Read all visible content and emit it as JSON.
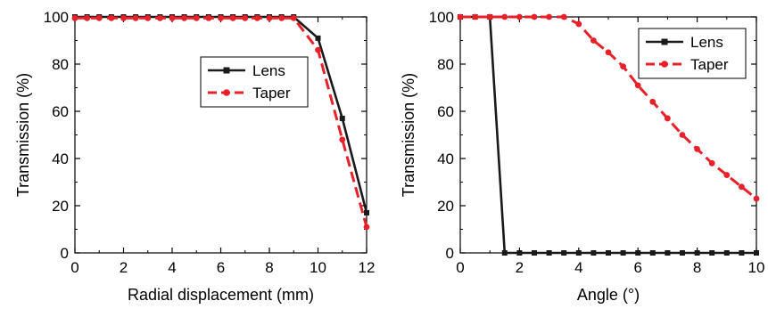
{
  "chart_data": [
    {
      "type": "line",
      "title": "",
      "xlabel": "Radial displacement (mm)",
      "ylabel": "Transmission (%)",
      "xlim": [
        0,
        12
      ],
      "ylim": [
        0,
        100
      ],
      "xticks": [
        0,
        2,
        4,
        6,
        8,
        10,
        12
      ],
      "yticks": [
        0,
        20,
        40,
        60,
        80,
        100
      ],
      "grid": false,
      "legend": "center-right",
      "series": [
        {
          "name": "Lens",
          "color": "#1a1a1a",
          "line_style": "solid",
          "marker": "square",
          "x": [
            0,
            0.5,
            1,
            1.5,
            2,
            2.5,
            3,
            3.5,
            4,
            4.5,
            5,
            5.5,
            6,
            6.5,
            7,
            7.5,
            8,
            8.5,
            9,
            10,
            11,
            12
          ],
          "y": [
            100,
            100,
            100,
            100,
            100,
            100,
            100,
            100,
            100,
            100,
            100,
            100,
            100,
            100,
            100,
            100,
            100,
            100,
            100,
            91,
            57,
            17
          ]
        },
        {
          "name": "Taper",
          "color": "#e8202a",
          "line_style": "dashed",
          "marker": "circle",
          "x": [
            0,
            0.5,
            1,
            1.5,
            2,
            2.5,
            3,
            3.5,
            4,
            4.5,
            5,
            5.5,
            6,
            6.5,
            7,
            7.5,
            8,
            8.5,
            9,
            10,
            11,
            12
          ],
          "y": [
            99.5,
            99.5,
            99.5,
            99.5,
            99.5,
            99.5,
            99.5,
            99.5,
            99.5,
            99.5,
            99.5,
            99.5,
            99.5,
            99.5,
            99.5,
            99.5,
            99.5,
            99.5,
            99.5,
            86,
            48,
            11
          ]
        }
      ]
    },
    {
      "type": "line",
      "title": "",
      "xlabel": "Angle (°)",
      "ylabel": "Transmission (%)",
      "xlim": [
        0,
        10
      ],
      "ylim": [
        0,
        100
      ],
      "xticks": [
        0,
        2,
        4,
        6,
        8,
        10
      ],
      "yticks": [
        0,
        20,
        40,
        60,
        80,
        100
      ],
      "grid": false,
      "legend": "top-right",
      "series": [
        {
          "name": "Lens",
          "color": "#1a1a1a",
          "line_style": "solid",
          "marker": "square",
          "x": [
            0,
            0.5,
            1,
            1.5,
            2,
            2.5,
            3,
            3.5,
            4,
            4.5,
            5,
            5.5,
            6,
            6.5,
            7,
            7.5,
            8,
            8.5,
            9,
            9.5,
            10
          ],
          "y": [
            100,
            100,
            100,
            0,
            0,
            0,
            0,
            0,
            0,
            0,
            0,
            0,
            0,
            0,
            0,
            0,
            0,
            0,
            0,
            0,
            0
          ]
        },
        {
          "name": "Taper",
          "color": "#e8202a",
          "line_style": "dashed",
          "marker": "circle",
          "x": [
            0,
            0.5,
            1,
            1.5,
            2,
            2.5,
            3,
            3.5,
            4,
            4.5,
            5,
            5.5,
            6,
            6.5,
            7,
            7.5,
            8,
            8.5,
            9,
            9.5,
            10
          ],
          "y": [
            100,
            100,
            100,
            100,
            100,
            100,
            100,
            100,
            97,
            90,
            85,
            79,
            71,
            64,
            57,
            50,
            44,
            38,
            33,
            28,
            23
          ]
        }
      ]
    }
  ]
}
